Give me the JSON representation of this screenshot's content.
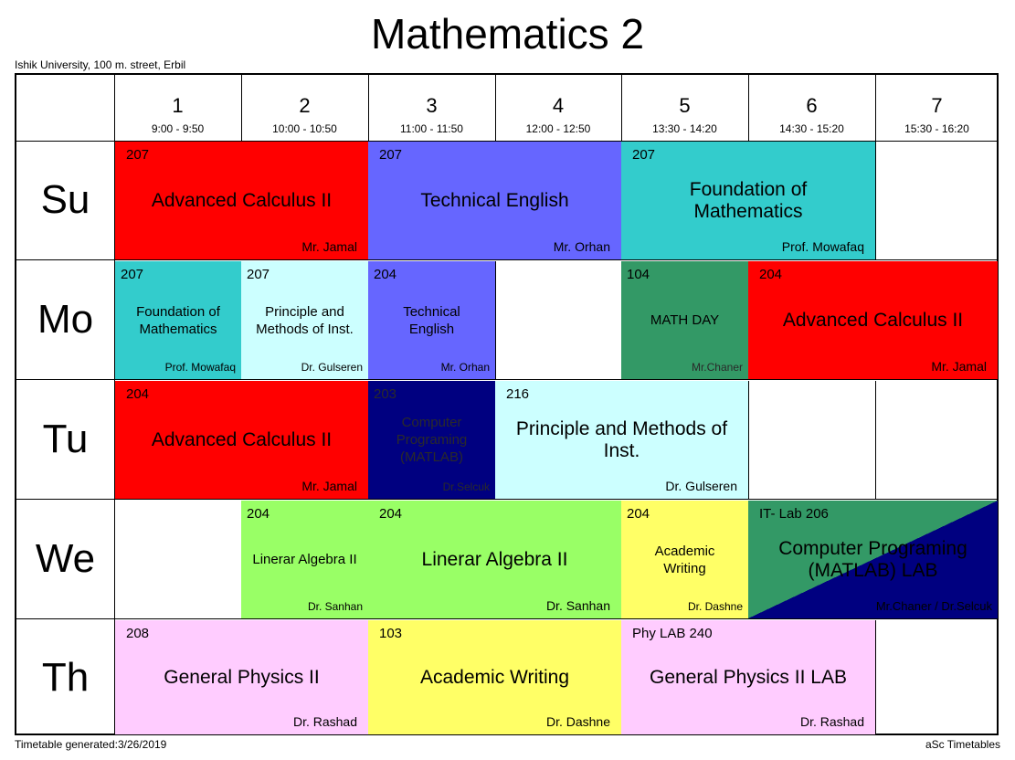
{
  "title": "Mathematics 2",
  "subtitle": "Ishik University, 100 m. street, Erbil",
  "footer": {
    "generated": "Timetable generated:3/26/2019",
    "brand": "aSc Timetables"
  },
  "periods": [
    {
      "num": "1",
      "time": "9:00 - 9:50"
    },
    {
      "num": "2",
      "time": "10:00 - 10:50"
    },
    {
      "num": "3",
      "time": "11:00 - 11:50"
    },
    {
      "num": "4",
      "time": "12:00 - 12:50"
    },
    {
      "num": "5",
      "time": "13:30 - 14:20"
    },
    {
      "num": "6",
      "time": "14:30 - 15:20"
    },
    {
      "num": "7",
      "time": "15:30 - 16:20"
    }
  ],
  "days": [
    "Su",
    "Mo",
    "Tu",
    "We",
    "Th"
  ],
  "lessons": {
    "su_calc": {
      "room": "207",
      "subject": "Advanced Calculus II",
      "teacher": "Mr. Jamal",
      "color": "#ff0000"
    },
    "su_eng": {
      "room": "207",
      "subject": "Technical English",
      "teacher": "Mr. Orhan",
      "color": "#6666ff"
    },
    "su_found": {
      "room": "207",
      "subject": "Foundation of Mathematics",
      "teacher": "Prof. Mowafaq",
      "color": "#33cccc"
    },
    "mo_found": {
      "room": "207",
      "subject": "Foundation of Mathematics",
      "teacher": "Prof. Mowafaq",
      "color": "#33cccc"
    },
    "mo_princ": {
      "room": "207",
      "subject": "Principle and Methods of Inst.",
      "teacher": "Dr. Gulseren",
      "color": "#ccffff"
    },
    "mo_eng": {
      "room": "204",
      "subject": "Technical English",
      "teacher": "Mr. Orhan",
      "color": "#6666ff"
    },
    "mo_mathday": {
      "room": "104",
      "subject": "MATH DAY",
      "teacher": "Mr.Chaner",
      "color": "#339966"
    },
    "mo_calc": {
      "room": "204",
      "subject": "Advanced Calculus II",
      "teacher": "Mr. Jamal",
      "color": "#ff0000"
    },
    "tu_calc": {
      "room": "204",
      "subject": "Advanced Calculus II",
      "teacher": "Mr. Jamal",
      "color": "#ff0000"
    },
    "tu_comp": {
      "room": "203",
      "subject": "Computer Programing (MATLAB)",
      "teacher": "Dr.Selcuk",
      "color": "#000080"
    },
    "tu_princ": {
      "room": "216",
      "subject": "Principle and Methods of Inst.",
      "teacher": "Dr. Gulseren",
      "color": "#ccffff"
    },
    "we_lin1": {
      "room": "204",
      "subject": "Linerar Algebra II",
      "teacher": "Dr. Sanhan",
      "color": "#99ff66"
    },
    "we_lin2": {
      "room": "204",
      "subject": "Linerar Algebra II",
      "teacher": "Dr. Sanhan",
      "color": "#99ff66"
    },
    "we_acad": {
      "room": "204",
      "subject": "Academic Writing",
      "teacher": "Dr. Dashne",
      "color": "#ffff66"
    },
    "we_lab": {
      "room": "IT- Lab 206",
      "subject": "Computer Programing (MATLAB) LAB",
      "teacher": "Mr.Chaner / Dr.Selcuk",
      "color": "#339966",
      "color2": "#000080"
    },
    "th_phys": {
      "room": "208",
      "subject": "General Physics II",
      "teacher": "Dr. Rashad",
      "color": "#ffccff"
    },
    "th_acad": {
      "room": "103",
      "subject": "Academic Writing",
      "teacher": "Dr. Dashne",
      "color": "#ffff66"
    },
    "th_physlab": {
      "room": "Phy LAB 240",
      "subject": "General Physics II LAB",
      "teacher": "Dr. Rashad",
      "color": "#ffccff"
    }
  }
}
